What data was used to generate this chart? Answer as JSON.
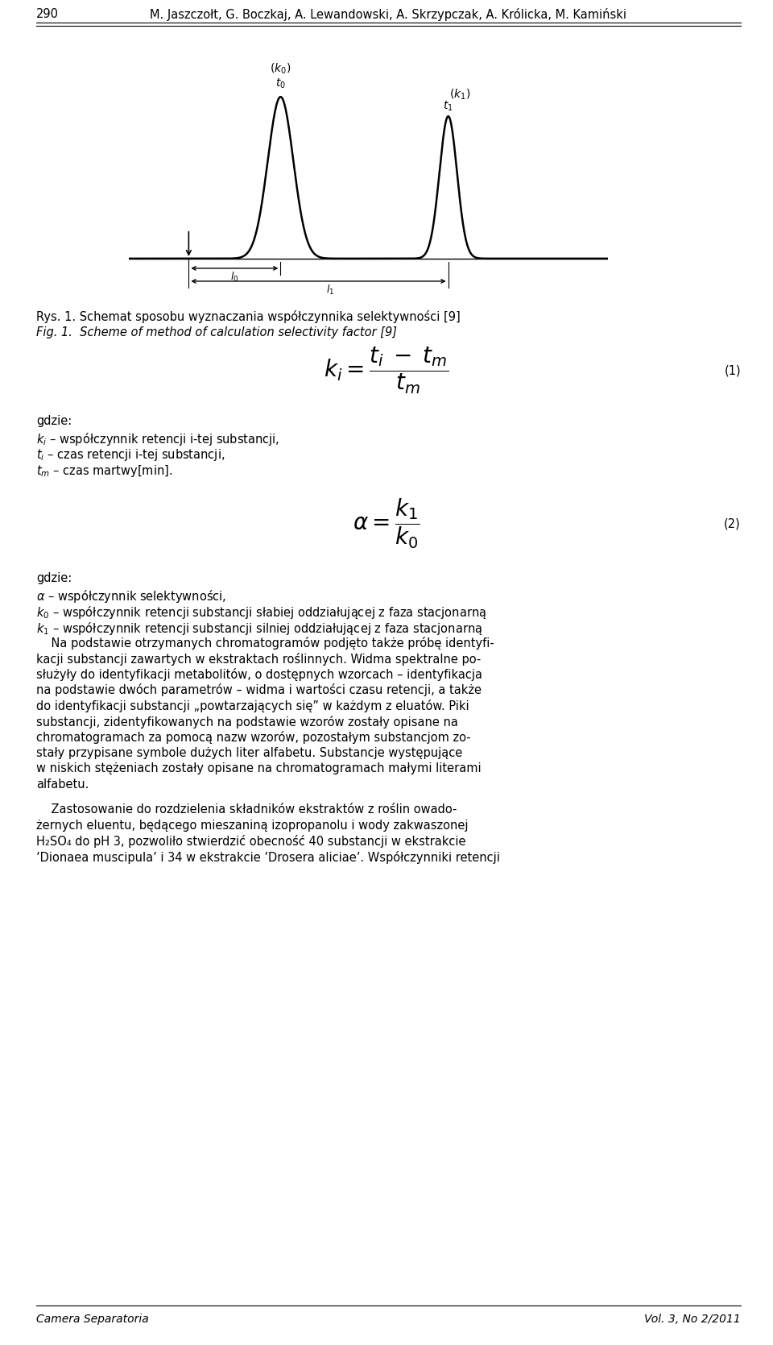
{
  "page_number": "290",
  "header": "M. Jaszczołt, G. Boczkaj, A. Lewandowski, A. Skrzypczak, A. Królicka, M. Kamiński",
  "fig_caption_pl": "Rys. 1. Schemat sposobu wyznaczania współczynnika selektywności [9]",
  "fig_caption_en": "Fig. 1.  Scheme of method of calculation selectivity factor [9]",
  "eq1_number": "(1)",
  "gdzie1": "gdzie:",
  "gdzie1_lines": [
    "$k_i$ – współczynnik retencji i-tej substancji,",
    "$t_i$ – czas retencji i-tej substancji,",
    "$t_m$ – czas martwy[min]."
  ],
  "eq2_number": "(2)",
  "gdzie2": "gdzie:",
  "gdzie2_lines": [
    "$\\alpha$ – współczynnik selektywności,",
    "$k_0$ – współczynnik retencji substancji słabiej oddziałującej z faza stacjonarną",
    "$k_1$ – współczynnik retencji substancji silniej oddziałującej z faza stacjonarną"
  ],
  "para1_lines": [
    "    Na podstawie otrzymanych chromatogramów podjęto także próbę identyfi-",
    "kacji substancji zawartych w ekstraktach roślinnych. Widma spektralne po-",
    "służyły do identyfikacji metabolitów, o dostępnych wzorcach – identyfikacja",
    "na podstawie dwóch parametrów – widma i wartości czasu retencji, a także",
    "do identyfikacji substancji „powtarzających się” w każdym z eluatów. Piki",
    "substancji, zidentyfikowanych na podstawie wzorów zostały opisane na",
    "chromatogramach za pomocą nazw wzorów, pozostałym substancjom zo-",
    "stały przypisane symbole dużych liter alfabetu. Substancje występujące",
    "w niskich stężeniach zostały opisane na chromatogramach małymi literami",
    "alfabetu."
  ],
  "para2_lines": [
    "    Zastosowanie do rozdzielenia składników ekstraktów z roślin owado-",
    "żernych eluentu, będącego mieszaniną izopropanolu i wody zakwaszonej",
    "H₂SO₄ do pH 3, pozwoliło stwierdzić obecność 40 substancji w ekstrakcie",
    "’Dionaea muscipula’ i 34 w ekstrakcie ’Drosera aliciae’. Współczynniki retencji"
  ],
  "footer_left": "Camera Separatoria",
  "footer_right": "Vol. 3, No 2/2011",
  "bg_color": "#ffffff"
}
